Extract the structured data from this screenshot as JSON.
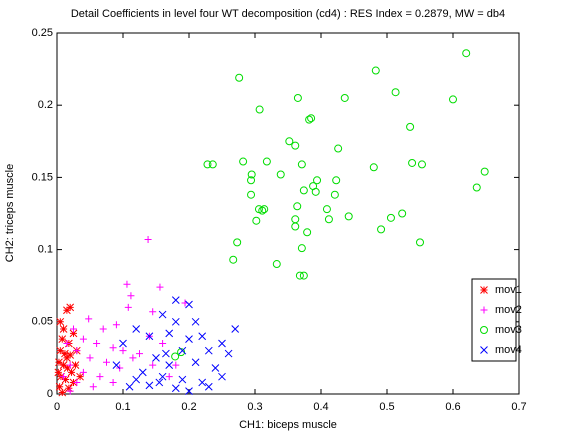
{
  "chart_data": {
    "type": "scatter",
    "title": "Detail Coefficients in level four WT decomposition (cd4) : RES Index = 0.2879, MW = db4",
    "x_label": "CH1: biceps muscle",
    "y_label": "CH2: triceps muscle",
    "xlim": [
      0,
      0.7
    ],
    "xticks": [
      0,
      0.1,
      0.2,
      0.3,
      0.4,
      0.5,
      0.6,
      0.7
    ],
    "ylim": [
      0,
      0.25
    ],
    "yticks": [
      0,
      0.05,
      0.1,
      0.15,
      0.2,
      0.25
    ],
    "legend_position": "lower right",
    "series": [
      {
        "name": "mov1",
        "color": "#ff0000",
        "marker": "*",
        "x": [
          0.005,
          0.015,
          0.02,
          0.01,
          0.025,
          0.008,
          0.018,
          0.005,
          0.012,
          0.02,
          0.03,
          0.003,
          0.01,
          0.016,
          0.022,
          0.006,
          0.013,
          0.025,
          0.004,
          0.018,
          0.008,
          0.028,
          0.015,
          0.002,
          0.035
        ],
        "y": [
          0.05,
          0.058,
          0.06,
          0.045,
          0.042,
          0.038,
          0.035,
          0.03,
          0.028,
          0.027,
          0.03,
          0.022,
          0.02,
          0.018,
          0.015,
          0.012,
          0.01,
          0.008,
          0.005,
          0.004,
          0.001,
          0.02,
          0.025,
          0.015,
          0.012
        ]
      },
      {
        "name": "mov2",
        "color": "#ff00ff",
        "marker": "+",
        "x": [
          0.138,
          0.106,
          0.156,
          0.194,
          0.112,
          0.145,
          0.108,
          0.048,
          0.07,
          0.09,
          0.04,
          0.06,
          0.085,
          0.1,
          0.125,
          0.03,
          0.05,
          0.075,
          0.095,
          0.115,
          0.02,
          0.04,
          0.065,
          0.085,
          0.01,
          0.03,
          0.055,
          0.02,
          0.14,
          0.16,
          0.17,
          0.18,
          0.015,
          0.025,
          0.145
        ],
        "y": [
          0.107,
          0.076,
          0.074,
          0.063,
          0.068,
          0.057,
          0.06,
          0.052,
          0.045,
          0.048,
          0.038,
          0.035,
          0.032,
          0.03,
          0.028,
          0.03,
          0.025,
          0.022,
          0.018,
          0.025,
          0.02,
          0.015,
          0.012,
          0.008,
          0.012,
          0.008,
          0.005,
          0.002,
          0.04,
          0.035,
          0.012,
          0.02,
          0.035,
          0.045,
          0.02
        ]
      },
      {
        "name": "mov3",
        "color": "#00dd00",
        "marker": "o",
        "x": [
          0.276,
          0.62,
          0.483,
          0.513,
          0.6,
          0.436,
          0.365,
          0.307,
          0.385,
          0.382,
          0.535,
          0.352,
          0.361,
          0.318,
          0.426,
          0.282,
          0.236,
          0.228,
          0.371,
          0.48,
          0.538,
          0.553,
          0.648,
          0.339,
          0.295,
          0.294,
          0.423,
          0.394,
          0.388,
          0.374,
          0.392,
          0.294,
          0.636,
          0.421,
          0.306,
          0.314,
          0.311,
          0.364,
          0.442,
          0.409,
          0.523,
          0.506,
          0.302,
          0.361,
          0.412,
          0.361,
          0.379,
          0.491,
          0.273,
          0.55,
          0.371,
          0.267,
          0.333,
          0.368,
          0.374,
          0.179,
          0.188
        ],
        "y": [
          0.219,
          0.236,
          0.224,
          0.209,
          0.204,
          0.205,
          0.205,
          0.197,
          0.191,
          0.19,
          0.185,
          0.175,
          0.172,
          0.161,
          0.17,
          0.161,
          0.159,
          0.159,
          0.159,
          0.157,
          0.16,
          0.159,
          0.154,
          0.152,
          0.152,
          0.148,
          0.148,
          0.148,
          0.144,
          0.141,
          0.14,
          0.138,
          0.143,
          0.138,
          0.128,
          0.128,
          0.127,
          0.13,
          0.123,
          0.128,
          0.125,
          0.122,
          0.12,
          0.121,
          0.121,
          0.116,
          0.112,
          0.114,
          0.105,
          0.105,
          0.101,
          0.093,
          0.09,
          0.082,
          0.082,
          0.026,
          0.029
        ]
      },
      {
        "name": "mov4",
        "color": "#0000ff",
        "marker": "x",
        "x": [
          0.18,
          0.2,
          0.16,
          0.18,
          0.21,
          0.27,
          0.22,
          0.25,
          0.12,
          0.14,
          0.17,
          0.2,
          0.23,
          0.26,
          0.19,
          0.15,
          0.17,
          0.21,
          0.24,
          0.1,
          0.13,
          0.16,
          0.19,
          0.22,
          0.25,
          0.12,
          0.14,
          0.18,
          0.2,
          0.09,
          0.11,
          0.23,
          0.165,
          0.155
        ],
        "y": [
          0.065,
          0.062,
          0.055,
          0.05,
          0.05,
          0.045,
          0.04,
          0.035,
          0.045,
          0.04,
          0.042,
          0.038,
          0.03,
          0.028,
          0.03,
          0.025,
          0.02,
          0.022,
          0.018,
          0.035,
          0.015,
          0.012,
          0.01,
          0.008,
          0.012,
          0.01,
          0.006,
          0.004,
          0.002,
          0.02,
          0.005,
          0.005,
          0.028,
          0.008
        ]
      }
    ]
  }
}
